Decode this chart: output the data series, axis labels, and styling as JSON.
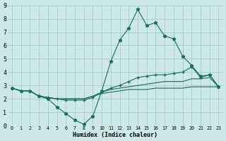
{
  "xlabel": "Humidex (Indice chaleur)",
  "bg_color": "#cde8e8",
  "grid_color": "#aacfcf",
  "line_color": "#1a6b60",
  "xlim": [
    -0.5,
    23.5
  ],
  "ylim": [
    0,
    9
  ],
  "xticks": [
    0,
    1,
    2,
    3,
    4,
    5,
    6,
    7,
    8,
    9,
    10,
    11,
    12,
    13,
    14,
    15,
    16,
    17,
    18,
    19,
    20,
    21,
    22,
    23
  ],
  "yticks": [
    0,
    1,
    2,
    3,
    4,
    5,
    6,
    7,
    8,
    9
  ],
  "line1_x": [
    0,
    1,
    2,
    3,
    4,
    5,
    6,
    7,
    8,
    9,
    10,
    11,
    12,
    13,
    14,
    15,
    16,
    17,
    18,
    19,
    20,
    21,
    22,
    23
  ],
  "line1_y": [
    2.8,
    2.6,
    2.6,
    2.2,
    2.0,
    1.4,
    0.9,
    0.4,
    0.1,
    0.7,
    2.6,
    4.8,
    6.4,
    7.3,
    8.7,
    7.5,
    7.7,
    6.7,
    6.5,
    5.2,
    4.5,
    3.7,
    3.8,
    2.9
  ],
  "line2_x": [
    0,
    1,
    2,
    3,
    4,
    5,
    6,
    7,
    8,
    9,
    10,
    11,
    12,
    13,
    14,
    15,
    16,
    17,
    18,
    19,
    20,
    21,
    22,
    23
  ],
  "line2_y": [
    2.8,
    2.6,
    2.6,
    2.2,
    2.1,
    2.0,
    1.9,
    1.9,
    1.9,
    2.1,
    2.5,
    2.8,
    3.0,
    3.3,
    3.6,
    3.7,
    3.8,
    3.8,
    3.9,
    4.0,
    4.4,
    3.6,
    3.8,
    2.9
  ],
  "line3_x": [
    0,
    1,
    2,
    3,
    4,
    5,
    6,
    7,
    8,
    9,
    10,
    11,
    12,
    13,
    14,
    15,
    16,
    17,
    18,
    19,
    20,
    21,
    22,
    23
  ],
  "line3_y": [
    2.8,
    2.6,
    2.6,
    2.2,
    2.1,
    2.0,
    2.0,
    2.0,
    2.0,
    2.2,
    2.5,
    2.7,
    2.8,
    2.9,
    3.0,
    3.1,
    3.2,
    3.3,
    3.3,
    3.3,
    3.5,
    3.5,
    3.6,
    2.9
  ],
  "line4_x": [
    0,
    1,
    2,
    3,
    4,
    5,
    6,
    7,
    8,
    9,
    10,
    11,
    12,
    13,
    14,
    15,
    16,
    17,
    18,
    19,
    20,
    21,
    22,
    23
  ],
  "line4_y": [
    2.8,
    2.6,
    2.6,
    2.2,
    2.1,
    2.0,
    2.0,
    2.0,
    2.0,
    2.2,
    2.4,
    2.5,
    2.6,
    2.7,
    2.7,
    2.7,
    2.8,
    2.8,
    2.8,
    2.8,
    2.9,
    2.9,
    2.9,
    2.9
  ]
}
